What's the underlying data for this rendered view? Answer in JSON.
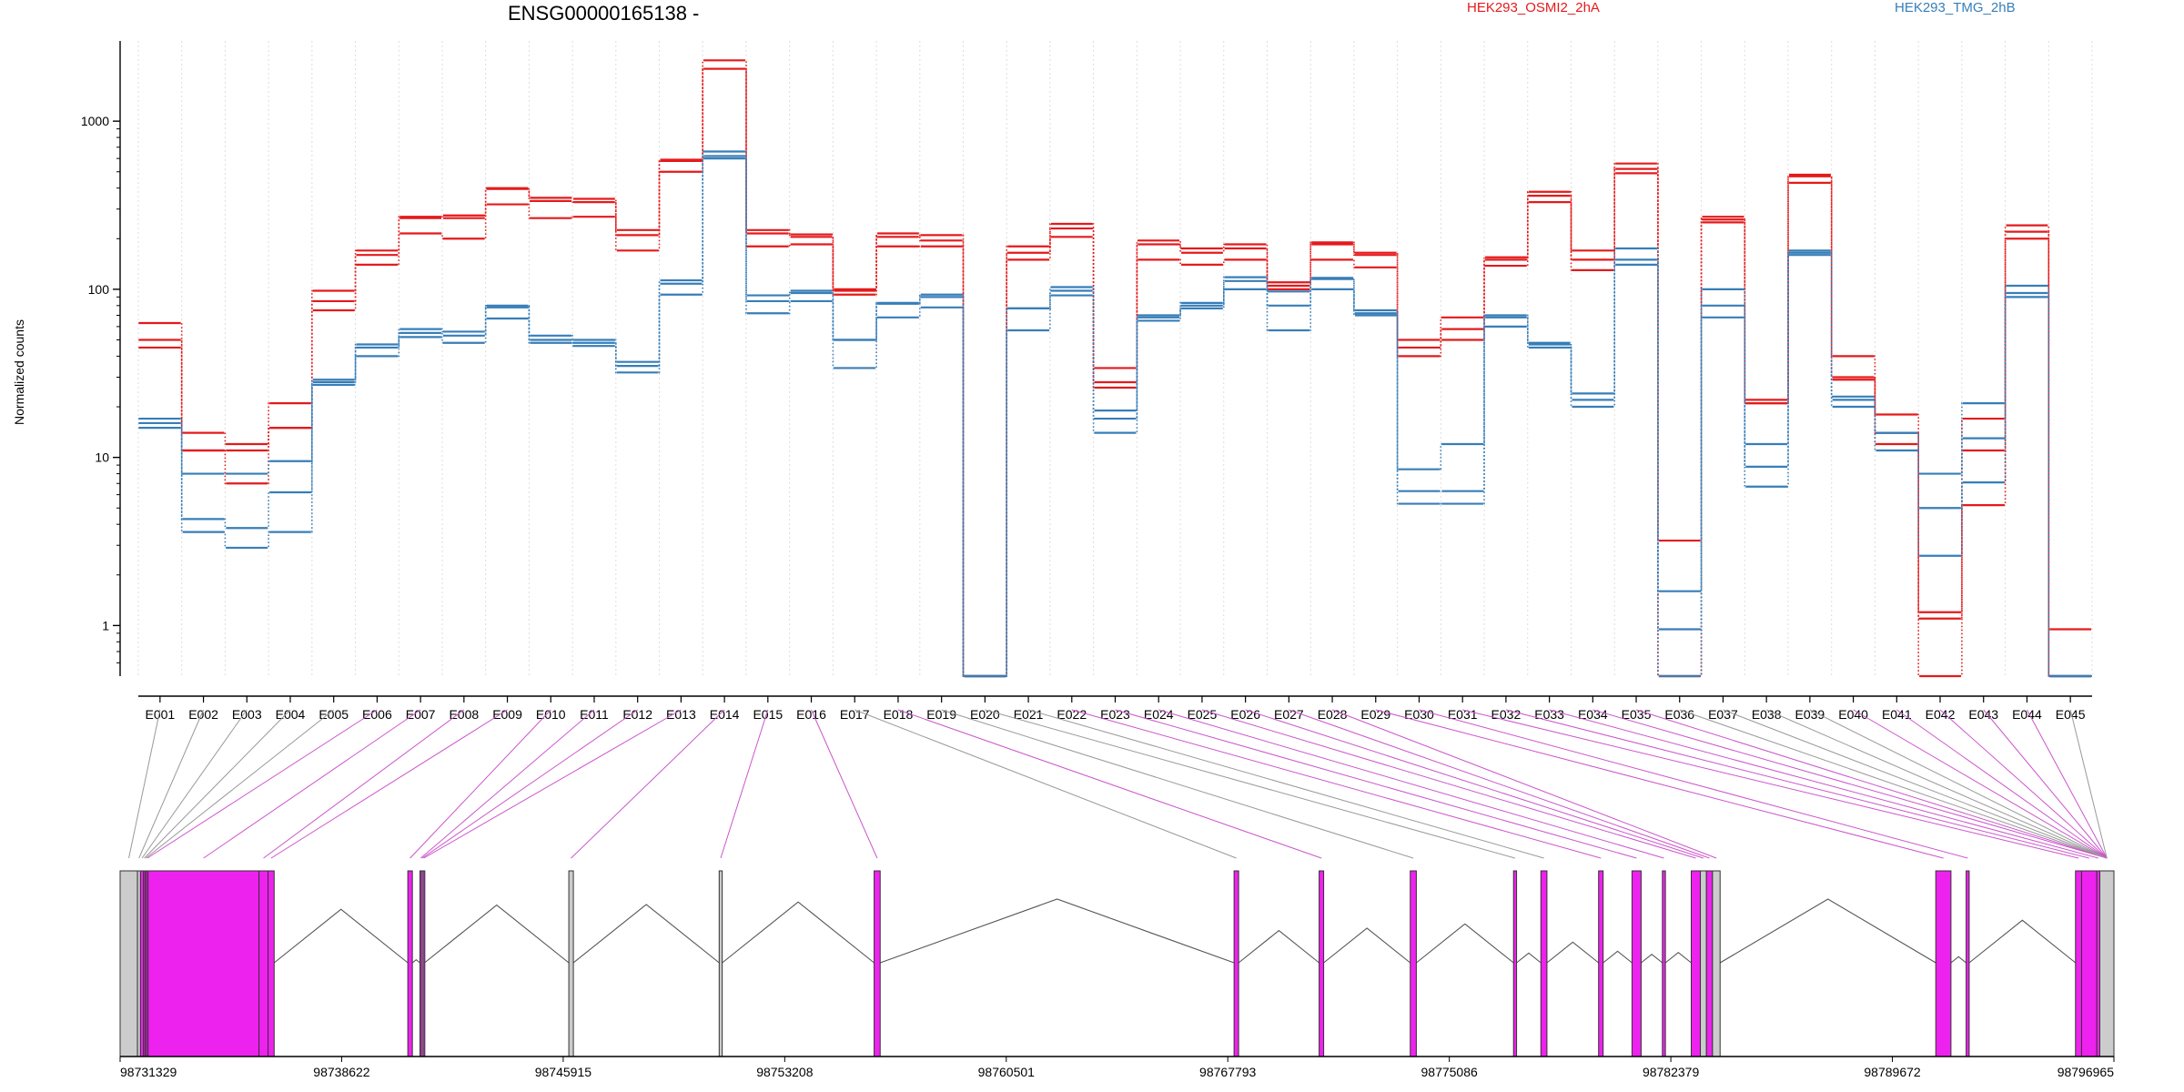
{
  "chart_data": {
    "type": "line",
    "title": "ENSG00000165138 -",
    "xlabel": "",
    "ylabel": "Normalized counts",
    "yscale": "log10",
    "ylim": [
      0.5,
      3000
    ],
    "yticks": [
      1,
      10,
      100,
      1000
    ],
    "ytick_labels": [
      "1",
      "10",
      "100",
      "1000"
    ],
    "grid": "vertical dotted lines at exon boundaries",
    "legend_position": "top",
    "categories": [
      "E001",
      "E002",
      "E003",
      "E004",
      "E005",
      "E006",
      "E007",
      "E008",
      "E009",
      "E010",
      "E011",
      "E012",
      "E013",
      "E014",
      "E015",
      "E016",
      "E017",
      "E018",
      "E019",
      "E020",
      "E021",
      "E022",
      "E023",
      "E024",
      "E025",
      "E026",
      "E027",
      "E028",
      "E029",
      "E030",
      "E031",
      "E032",
      "E033",
      "E034",
      "E035",
      "E036",
      "E037",
      "E038",
      "E039",
      "E040",
      "E041",
      "E042",
      "E043",
      "E044",
      "E045"
    ],
    "groups": [
      {
        "name": "HEK293_OSMI2_2hA",
        "color": "#e41a1c"
      },
      {
        "name": "HEK293_TMG_2hB",
        "color": "#377eb8"
      }
    ],
    "series": [
      {
        "group": 0,
        "values": [
          63,
          14,
          12,
          21,
          98,
          170,
          270,
          275,
          400,
          350,
          345,
          225,
          590,
          2300,
          225,
          212,
          100,
          215,
          210,
          0.5,
          180,
          245,
          34,
          195,
          175,
          185,
          110,
          190,
          165,
          50,
          68,
          155,
          380,
          170,
          560,
          3.2,
          270,
          22,
          480,
          40,
          18,
          1.2,
          17,
          240,
          0.95
        ]
      },
      {
        "group": 0,
        "values": [
          50,
          11,
          11,
          15,
          85,
          160,
          265,
          265,
          395,
          335,
          330,
          210,
          580,
          2050,
          215,
          205,
          98,
          205,
          195,
          0.5,
          165,
          230,
          28,
          185,
          165,
          175,
          105,
          185,
          160,
          45,
          58,
          150,
          360,
          150,
          520,
          0.5,
          260,
          21,
          470,
          30,
          14,
          1.1,
          11,
          220,
          0.5
        ]
      },
      {
        "group": 0,
        "values": [
          45,
          11,
          7,
          15,
          75,
          140,
          215,
          200,
          320,
          265,
          270,
          170,
          500,
          2050,
          180,
          185,
          93,
          180,
          180,
          0.5,
          150,
          205,
          26,
          150,
          140,
          150,
          100,
          150,
          135,
          40,
          50,
          138,
          330,
          130,
          490,
          0.5,
          250,
          21,
          430,
          29,
          12,
          0.5,
          5.2,
          200,
          0.5
        ]
      },
      {
        "group": 1,
        "values": [
          17,
          8,
          8,
          9.5,
          29,
          47,
          58,
          56,
          80,
          53,
          50,
          37,
          113,
          660,
          92,
          98,
          50,
          83,
          93,
          0.5,
          77,
          103,
          19,
          70,
          83,
          118,
          97,
          117,
          75,
          8.5,
          12,
          70,
          48,
          24,
          175,
          1.6,
          100,
          12,
          170,
          23,
          14,
          8,
          21,
          105,
          0.5
        ]
      },
      {
        "group": 1,
        "values": [
          16,
          4.3,
          3.8,
          6.2,
          28,
          45,
          55,
          53,
          78,
          50,
          48,
          35,
          108,
          620,
          85,
          95,
          50,
          82,
          90,
          0.5,
          77,
          98,
          17,
          68,
          80,
          112,
          80,
          115,
          72,
          6.3,
          6.3,
          68,
          47,
          22,
          150,
          0.95,
          80,
          8.8,
          165,
          22,
          14,
          5,
          13,
          95,
          0.5
        ]
      },
      {
        "group": 1,
        "values": [
          15,
          3.6,
          2.9,
          3.6,
          27,
          40,
          52,
          48,
          67,
          48,
          46,
          32,
          93,
          600,
          72,
          85,
          34,
          68,
          78,
          0.5,
          57,
          92,
          14,
          65,
          77,
          100,
          57,
          100,
          70,
          5.3,
          5.3,
          60,
          45,
          20,
          140,
          0.5,
          68,
          6.7,
          160,
          20,
          11,
          2.6,
          7.1,
          90,
          0.5
        ]
      }
    ]
  },
  "gene_model": {
    "genomic_axis_labels": [
      "98731329",
      "98738622",
      "98745915",
      "98753208",
      "98760501",
      "98767793",
      "98775086",
      "98782379",
      "98789672",
      "98796965"
    ],
    "genomic_axis_positions": [
      98731329,
      98738622,
      98745915,
      98753208,
      98760501,
      98767793,
      98775086,
      98782379,
      98789672,
      98796965
    ],
    "feature_color": "#ee22ee",
    "background_color": "#cccccc",
    "exons": [
      [
        98731329,
        98731900,
        "g"
      ],
      [
        98731900,
        98732000,
        "g"
      ],
      [
        98732000,
        98732100,
        "m"
      ],
      [
        98732100,
        98732150,
        "m"
      ],
      [
        98732150,
        98732200,
        "m"
      ],
      [
        98732200,
        98732250,
        "m"
      ],
      [
        98732250,
        98735900,
        "m"
      ],
      [
        98735900,
        98736200,
        "m"
      ],
      [
        98736200,
        98736400,
        "m"
      ],
      [
        98740800,
        98740950,
        "m"
      ],
      [
        98741200,
        98741250,
        "m"
      ],
      [
        98741250,
        98741300,
        "g"
      ],
      [
        98741300,
        98741350,
        "m"
      ],
      [
        98746100,
        98746250,
        "g"
      ],
      [
        98751050,
        98751150,
        "g"
      ],
      [
        98756150,
        98756350,
        "m"
      ],
      [
        98768000,
        98768150,
        "m"
      ],
      [
        98770800,
        98770950,
        "m"
      ],
      [
        98773800,
        98774000,
        "m"
      ],
      [
        98777200,
        98777300,
        "m"
      ],
      [
        98778100,
        98778300,
        "m"
      ],
      [
        98780000,
        98780150,
        "m"
      ],
      [
        98781100,
        98781400,
        "m"
      ],
      [
        98782100,
        98782200,
        "m"
      ],
      [
        98783050,
        98783350,
        "m"
      ],
      [
        98783350,
        98783550,
        "g"
      ],
      [
        98783550,
        98783750,
        "m"
      ],
      [
        98783750,
        98784000,
        "g"
      ],
      [
        98791100,
        98791600,
        "m"
      ],
      [
        98792100,
        98792200,
        "m"
      ],
      [
        98795700,
        98795900,
        "m"
      ],
      [
        98795900,
        98796400,
        "m"
      ],
      [
        98796400,
        98796500,
        "m"
      ],
      [
        98796500,
        98796965,
        "g"
      ]
    ],
    "links": [
      [
        0,
        "g"
      ],
      [
        1,
        "g"
      ],
      [
        2,
        "g"
      ],
      [
        3,
        "g"
      ],
      [
        4,
        "g"
      ],
      [
        5,
        "m"
      ],
      [
        6,
        "m"
      ],
      [
        7,
        "m"
      ],
      [
        8,
        "m"
      ],
      [
        9,
        "m"
      ],
      [
        10,
        "m"
      ],
      [
        11,
        "m"
      ],
      [
        12,
        "m"
      ],
      [
        13,
        "m"
      ],
      [
        14,
        "m"
      ],
      [
        15,
        "m"
      ],
      [
        16,
        "g"
      ],
      [
        17,
        "m"
      ],
      [
        18,
        "g"
      ],
      [
        19,
        "g"
      ],
      [
        20,
        "g"
      ],
      [
        21,
        "m"
      ],
      [
        22,
        "m"
      ],
      [
        23,
        "m"
      ],
      [
        24,
        "m"
      ],
      [
        25,
        "m"
      ],
      [
        26,
        "m"
      ],
      [
        27,
        "m"
      ],
      [
        28,
        "m"
      ],
      [
        29,
        "m"
      ],
      [
        30,
        "m"
      ],
      [
        31,
        "m"
      ],
      [
        32,
        "m"
      ],
      [
        33,
        "m"
      ],
      [
        34,
        "m"
      ],
      [
        35,
        "g"
      ],
      [
        36,
        "g"
      ],
      [
        37,
        "g"
      ],
      [
        38,
        "g"
      ],
      [
        39,
        "m"
      ],
      [
        40,
        "m"
      ],
      [
        41,
        "m"
      ],
      [
        42,
        "m"
      ],
      [
        43,
        "m"
      ],
      [
        44,
        "g"
      ]
    ]
  }
}
